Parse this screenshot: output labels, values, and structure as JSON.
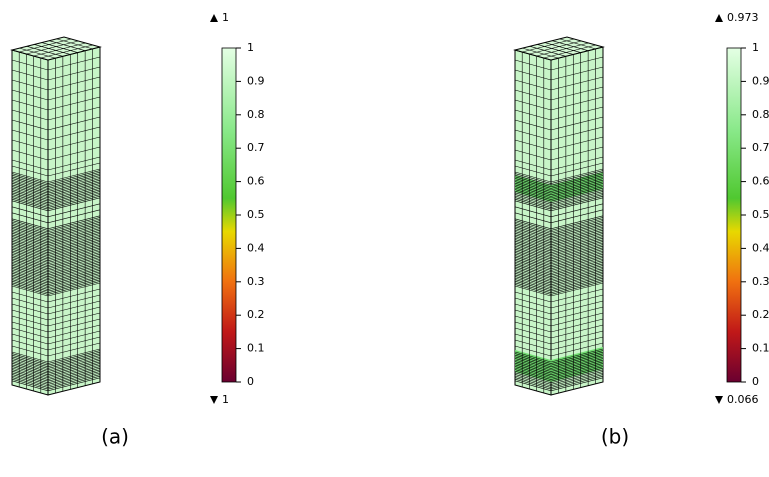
{
  "panels": [
    {
      "max_label": "1",
      "min_label": "1",
      "colorbar_ticks": [
        0,
        0.1,
        0.2,
        0.3,
        0.4,
        0.5,
        0.6,
        0.7,
        0.8,
        0.9,
        1
      ],
      "caption": "(a)"
    },
    {
      "max_label": "0.973",
      "min_label": "0.066",
      "colorbar_ticks": [
        0,
        0.1,
        0.2,
        0.3,
        0.4,
        0.5,
        0.6,
        0.7,
        0.8,
        0.9,
        1
      ],
      "caption": "(b)"
    }
  ]
}
